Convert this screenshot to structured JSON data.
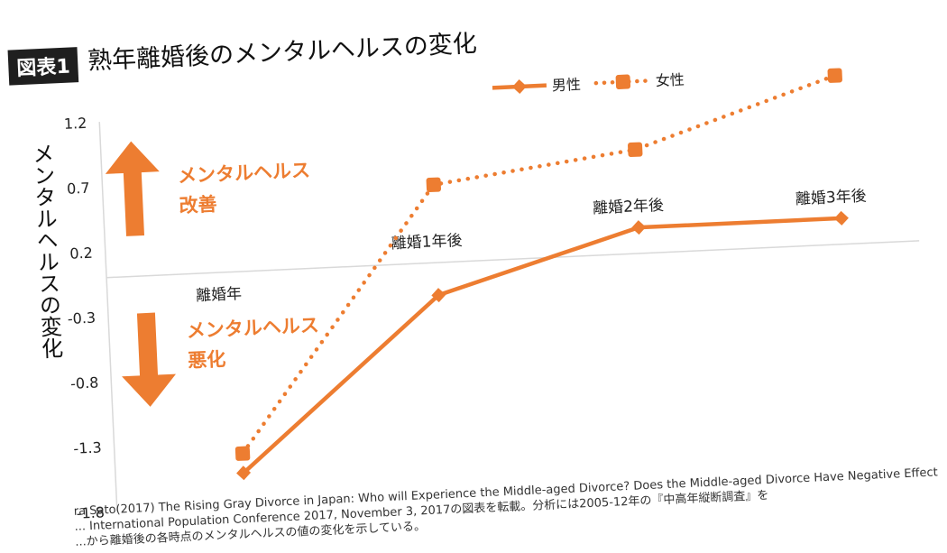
{
  "header": {
    "badge": "図表1",
    "title": "熟年離婚後のメンタルヘルスの変化"
  },
  "y_axis_title": "メンタルヘルスの変化",
  "annotations": {
    "improve_line1": "メンタルヘルス",
    "improve_line2": "改善",
    "worsen_line1": "メンタルヘルス",
    "worsen_line2": "悪化"
  },
  "source_note": {
    "line1": "ra Sato(2017) The Rising Gray Divorce in Japan: Who will Experience the Middle-aged Divorce? Does the Middle-aged Divorce Have Negative Effect",
    "line2": "... International Population Conference 2017, November 3, 2017の図表を転載。分析には2005-12年の『中高年縦断調査』を",
    "line3": "...から離婚後の各時点のメンタルヘルスの値の変化を示している。"
  },
  "colors": {
    "series": "#ed7d31",
    "axis": "#d9d9d9",
    "text": "#222222"
  },
  "icons": {
    "up": "arrow-up-icon",
    "down": "arrow-down-icon"
  },
  "chart_data": {
    "type": "line",
    "categories": [
      "離婚年",
      "離婚1年後",
      "離婚2年後",
      "離婚3年後"
    ],
    "series": [
      {
        "name": "男性",
        "values": [
          -1.55,
          -0.25,
          0.2,
          0.2
        ],
        "style": "solid",
        "marker": "diamond"
      },
      {
        "name": "女性",
        "values": [
          -1.4,
          0.6,
          0.8,
          1.3
        ],
        "style": "dotted",
        "marker": "square"
      }
    ],
    "yticks": [
      "1.2",
      "0.7",
      "0.2",
      "-0.3",
      "-0.8",
      "-1.3",
      "-1.8"
    ],
    "ylim": [
      -1.8,
      1.2
    ],
    "legend_position": "top-right"
  }
}
